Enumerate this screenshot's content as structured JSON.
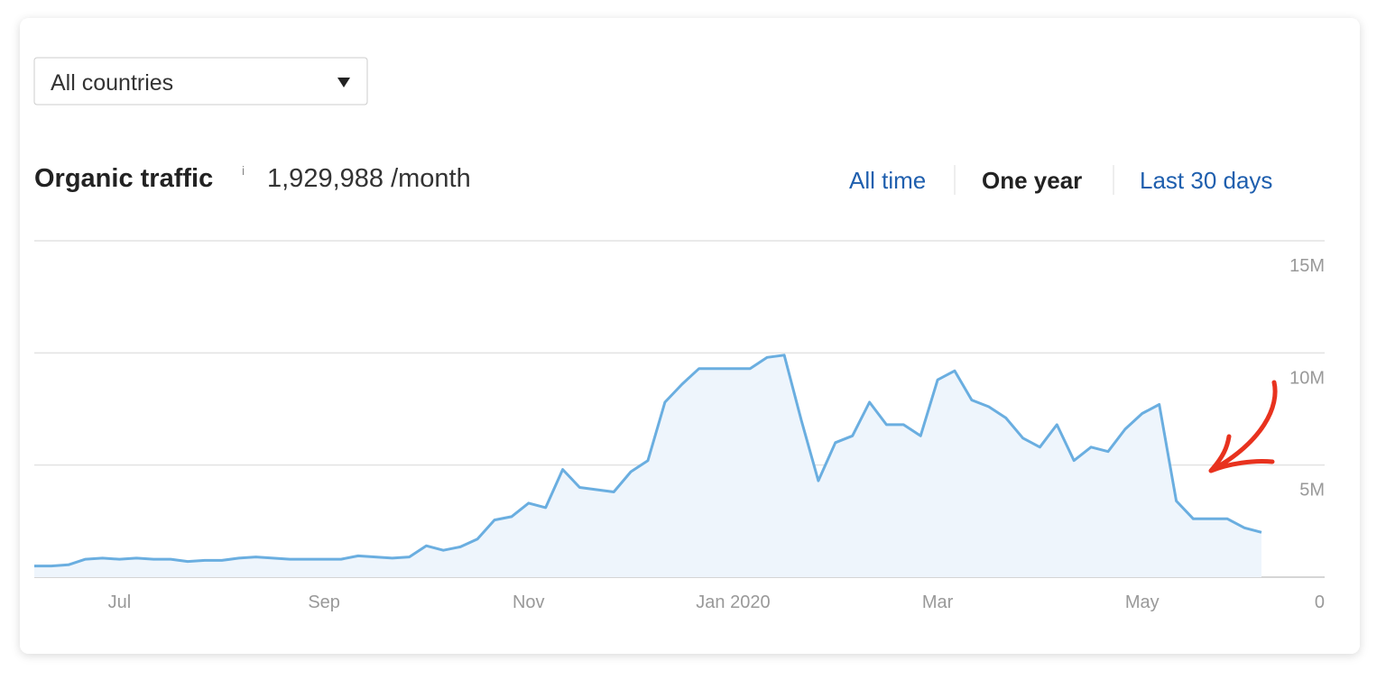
{
  "filter": {
    "country": "All countries"
  },
  "header": {
    "title": "Organic traffic",
    "info": "i",
    "summary": "1,929,988 /month"
  },
  "tabs": [
    {
      "label": "All time",
      "active": false
    },
    {
      "label": "One year",
      "active": true
    },
    {
      "label": "Last 30 days",
      "active": false
    }
  ],
  "chart_data": {
    "type": "line",
    "categories": [
      null,
      null,
      null,
      null,
      null,
      "Jul",
      null,
      null,
      null,
      null,
      null,
      null,
      null,
      null,
      null,
      null,
      null,
      "Sep",
      null,
      null,
      null,
      null,
      null,
      null,
      null,
      null,
      null,
      null,
      null,
      "Nov",
      null,
      null,
      null,
      null,
      null,
      null,
      null,
      null,
      null,
      null,
      null,
      "Jan 2020",
      null,
      null,
      null,
      null,
      null,
      null,
      null,
      null,
      null,
      null,
      null,
      "Mar",
      null,
      null,
      null,
      null,
      null,
      null,
      null,
      null,
      null,
      null,
      null,
      "May",
      null,
      null,
      null,
      null,
      null,
      null,
      null
    ],
    "values": [
      500000,
      500000,
      550000,
      800000,
      850000,
      800000,
      850000,
      800000,
      800000,
      700000,
      750000,
      750000,
      850000,
      900000,
      850000,
      800000,
      800000,
      800000,
      800000,
      950000,
      900000,
      850000,
      900000,
      1400000,
      1200000,
      1350000,
      1700000,
      2550000,
      2700000,
      3300000,
      3100000,
      4800000,
      4000000,
      3900000,
      3800000,
      4700000,
      5200000,
      7800000,
      8600000,
      9300000,
      9300000,
      9300000,
      9300000,
      9800000,
      9900000,
      7000000,
      4300000,
      6000000,
      6300000,
      7800000,
      6800000,
      6800000,
      6300000,
      8800000,
      9200000,
      7900000,
      7600000,
      7100000,
      6200000,
      5800000,
      6800000,
      5200000,
      5800000,
      5600000,
      6600000,
      7300000,
      7700000,
      3400000,
      2600000,
      2600000,
      2600000,
      2200000,
      2000000
    ],
    "color": "#6aaee0",
    "fill": "#eef5fc",
    "ylim": [
      0,
      15000000
    ],
    "yticks": [
      0,
      {
        "value": 5000000,
        "label": "5M"
      },
      {
        "value": 10000000,
        "label": "10M"
      },
      {
        "value": 15000000,
        "label": "15M"
      }
    ],
    "grid": true
  }
}
